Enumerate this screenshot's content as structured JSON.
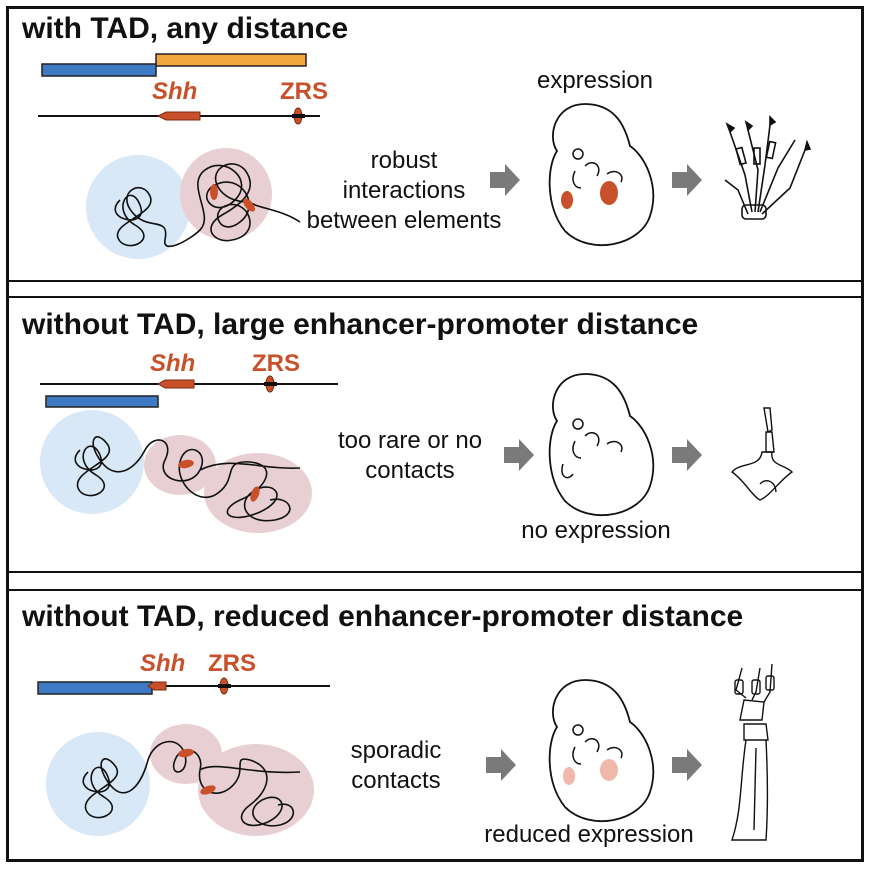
{
  "colors": {
    "tad_orange": "#f2a640",
    "tad_blue": "#3f7bc4",
    "element_red": "#c8502a",
    "blob_blue": "#d8e8f6",
    "blob_pink": "#e8cfd3",
    "arrow_gray": "#7a7a7a"
  },
  "panels": [
    {
      "title": "with TAD, any distance",
      "gene_label": "Shh",
      "enhancer_label": "ZRS",
      "interaction_text": "robust\ninteractions\nbetween elements",
      "expression_text": "expression"
    },
    {
      "title": "without TAD, large enhancer-promoter distance",
      "gene_label": "Shh",
      "enhancer_label": "ZRS",
      "interaction_text": "too rare or no\ncontacts",
      "expression_text": "no expression"
    },
    {
      "title": "without TAD, reduced enhancer-promoter distance",
      "gene_label": "Shh",
      "enhancer_label": "ZRS",
      "interaction_text": "sporadic\ncontacts",
      "expression_text": "reduced expression"
    }
  ]
}
